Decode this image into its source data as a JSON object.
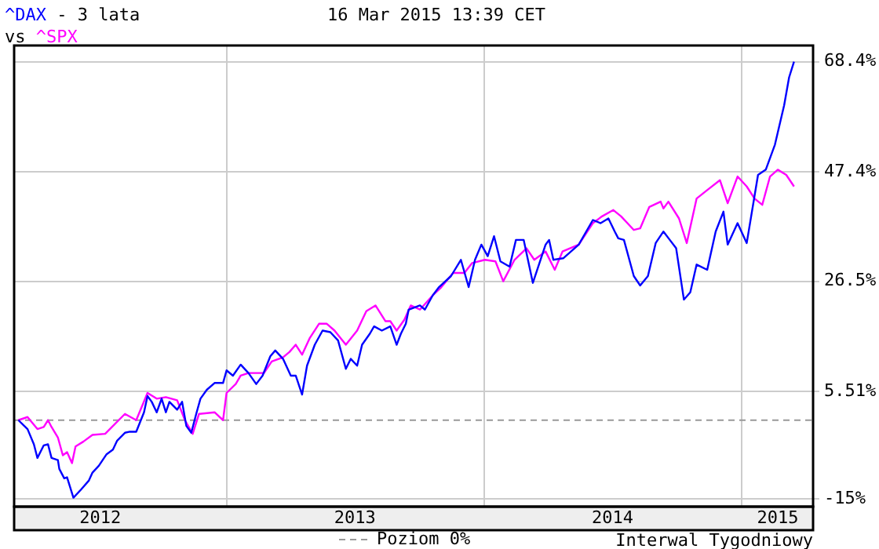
{
  "chart_data": {
    "type": "line",
    "title": "- 3 lata",
    "subtitle": "16 Mar 2015 13:39 CET",
    "annotations": [
      "vs",
      "Interwal Tygodniowy"
    ],
    "legend": "bottom",
    "grid": true,
    "marker": "none",
    "line_style": "solid",
    "xlim": [
      "2012-03-06",
      "2015-04-12"
    ],
    "xticks": [
      {
        "value": "2012-07-06",
        "label": "2012"
      },
      {
        "value": "2013-01-01",
        "label": null
      },
      {
        "value": "2013-07-02",
        "label": "2013"
      },
      {
        "value": "2014-01-01",
        "label": null
      },
      {
        "value": "2014-07-02",
        "label": "2014"
      },
      {
        "value": "2015-01-01",
        "label": null
      },
      {
        "value": "2015-02-21",
        "label": "2015"
      }
    ],
    "ylim": [
      -16.5,
      71.5
    ],
    "yticks": [
      {
        "value": -15,
        "label": "-15%"
      },
      {
        "value": 5.51,
        "label": "5.51%"
      },
      {
        "value": 26.5,
        "label": "26.5%"
      },
      {
        "value": 47.4,
        "label": "47.4%"
      },
      {
        "value": 68.4,
        "label": "68.4%"
      }
    ],
    "ref_lines": [
      {
        "axis": "y",
        "value": 0,
        "label": "Poziom 0%",
        "color": "#999999",
        "line_style": "dashed"
      }
    ],
    "series": [
      {
        "name": "^DAX",
        "color": "#0000ff",
        "x": [
          "2012-03-12",
          "2012-03-19",
          "2012-03-25",
          "2012-04-03",
          "2012-04-08",
          "2012-04-17",
          "2012-04-23",
          "2012-04-28",
          "2012-05-07",
          "2012-05-09",
          "2012-05-16",
          "2012-05-20",
          "2012-05-29",
          "2012-06-09",
          "2012-06-20",
          "2012-06-25",
          "2012-07-04",
          "2012-07-15",
          "2012-07-24",
          "2012-07-30",
          "2012-08-10",
          "2012-08-17",
          "2012-08-26",
          "2012-09-06",
          "2012-09-11",
          "2012-09-17",
          "2012-09-24",
          "2012-10-01",
          "2012-10-07",
          "2012-10-12",
          "2012-10-23",
          "2012-10-30",
          "2012-11-05",
          "2012-11-12",
          "2012-11-19",
          "2012-11-25",
          "2012-12-04",
          "2012-12-15",
          "2012-12-27",
          "2013-01-01",
          "2013-01-10",
          "2013-01-21",
          "2013-02-01",
          "2013-02-12",
          "2013-02-21",
          "2013-03-04",
          "2013-03-11",
          "2013-03-22",
          "2013-04-02",
          "2013-04-09",
          "2013-04-18",
          "2013-04-25",
          "2013-05-06",
          "2013-05-17",
          "2013-05-28",
          "2013-06-08",
          "2013-06-19",
          "2013-06-26",
          "2013-07-05",
          "2013-07-12",
          "2013-07-23",
          "2013-07-29",
          "2013-08-09",
          "2013-08-21",
          "2013-08-30",
          "2013-09-05",
          "2013-09-12",
          "2013-09-16",
          "2013-10-02",
          "2013-10-09",
          "2013-10-20",
          "2013-10-29",
          "2013-11-15",
          "2013-11-29",
          "2013-12-10",
          "2013-12-19",
          "2013-12-28",
          "2014-01-06",
          "2014-01-15",
          "2014-01-24",
          "2014-02-06",
          "2014-02-15",
          "2014-02-26",
          "2014-03-11",
          "2014-03-29",
          "2014-04-03",
          "2014-04-09",
          "2014-04-23",
          "2014-05-15",
          "2014-06-04",
          "2014-06-15",
          "2014-06-26",
          "2014-07-05",
          "2014-07-10",
          "2014-07-18",
          "2014-08-01",
          "2014-08-10",
          "2014-08-21",
          "2014-09-01",
          "2014-09-12",
          "2014-09-21",
          "2014-09-30",
          "2014-10-11",
          "2014-10-20",
          "2014-10-29",
          "2014-11-13",
          "2014-11-25",
          "2014-12-06",
          "2014-12-12",
          "2014-12-26",
          "2015-01-08",
          "2015-01-24",
          "2015-02-04",
          "2015-02-17",
          "2015-03-02",
          "2015-03-09",
          "2015-03-16"
        ],
        "values": [
          0,
          -0.9,
          -1.7,
          -4.6,
          -7.2,
          -4.8,
          -4.6,
          -7.2,
          -7.6,
          -9.3,
          -11.1,
          -10.9,
          -14.8,
          -13.2,
          -11.5,
          -10,
          -8.7,
          -6.5,
          -5.6,
          -3.9,
          -2.4,
          -2.2,
          -2.2,
          1.5,
          4.6,
          3.5,
          1.5,
          4.1,
          1.5,
          3.5,
          2,
          3.5,
          -1.1,
          -2.4,
          1.2,
          4.1,
          5.8,
          7.1,
          7.1,
          9.5,
          8.5,
          10.6,
          9,
          6.9,
          8.5,
          12.2,
          13.3,
          11.7,
          8.5,
          8.5,
          4.9,
          10.4,
          14.4,
          17.1,
          16.8,
          15.2,
          9.8,
          11.7,
          10.4,
          14.4,
          16.5,
          17.9,
          17.1,
          17.9,
          14.4,
          16.5,
          18.4,
          21.1,
          21.9,
          21.1,
          23.8,
          25.4,
          27.5,
          30.6,
          25.4,
          30.6,
          33.5,
          31.3,
          35.1,
          30.3,
          29.3,
          34.4,
          34.4,
          26.2,
          33.5,
          34.4,
          30.6,
          30.9,
          33.5,
          38.2,
          37.6,
          38.5,
          36,
          34.7,
          34.4,
          27.5,
          25.7,
          27.5,
          33.8,
          36,
          34.4,
          32.8,
          23,
          24.4,
          29.7,
          28.7,
          36,
          39.8,
          33.5,
          37.6,
          33.8,
          46.8,
          47.8,
          52.6,
          60.1,
          65.4,
          68.4
        ]
      },
      {
        "name": "^SPX",
        "color": "#ff00ff",
        "x": [
          "2012-03-12",
          "2012-03-25",
          "2012-04-08",
          "2012-04-17",
          "2012-04-23",
          "2012-04-28",
          "2012-05-07",
          "2012-05-14",
          "2012-05-20",
          "2012-05-27",
          "2012-06-01",
          "2012-06-12",
          "2012-06-25",
          "2012-07-13",
          "2012-07-24",
          "2012-08-10",
          "2012-08-26",
          "2012-09-11",
          "2012-09-24",
          "2012-10-07",
          "2012-10-23",
          "2012-11-03",
          "2012-11-14",
          "2012-11-23",
          "2012-12-15",
          "2012-12-27",
          "2013-01-01",
          "2013-01-14",
          "2013-01-21",
          "2013-02-01",
          "2013-02-23",
          "2013-03-06",
          "2013-03-22",
          "2013-03-31",
          "2013-04-09",
          "2013-04-18",
          "2013-04-29",
          "2013-05-12",
          "2013-05-23",
          "2013-06-03",
          "2013-06-19",
          "2013-07-05",
          "2013-07-18",
          "2013-07-31",
          "2013-08-14",
          "2013-08-21",
          "2013-08-30",
          "2013-09-10",
          "2013-09-19",
          "2013-10-02",
          "2013-10-20",
          "2013-10-31",
          "2013-11-18",
          "2013-12-04",
          "2013-12-15",
          "2014-01-02",
          "2014-01-17",
          "2014-01-28",
          "2014-02-13",
          "2014-03-02",
          "2014-03-13",
          "2014-03-29",
          "2014-04-11",
          "2014-04-22",
          "2014-05-15",
          "2014-06-04",
          "2014-06-17",
          "2014-07-03",
          "2014-07-14",
          "2014-08-01",
          "2014-08-10",
          "2014-08-23",
          "2014-09-08",
          "2014-09-12",
          "2014-09-19",
          "2014-10-04",
          "2014-10-15",
          "2014-10-29",
          "2014-11-13",
          "2014-12-01",
          "2014-12-12",
          "2014-12-26",
          "2015-01-08",
          "2015-01-19",
          "2015-01-30",
          "2015-02-10",
          "2015-02-21",
          "2015-03-05",
          "2015-03-16"
        ],
        "values": [
          0,
          0.6,
          -1.7,
          -1.3,
          0,
          -1.3,
          -3.3,
          -6.7,
          -6.1,
          -8.2,
          -5,
          -4.1,
          -2.8,
          -2.6,
          -1.1,
          1.2,
          0,
          5.2,
          4.1,
          4.4,
          3.8,
          0,
          -2.6,
          1.2,
          1.5,
          0,
          5.2,
          6.9,
          8.5,
          9,
          9,
          11.2,
          12,
          13,
          14.4,
          12.5,
          15.7,
          18.4,
          18.4,
          17.1,
          14.4,
          17.1,
          20.8,
          21.9,
          18.9,
          18.9,
          17.1,
          19.2,
          21.9,
          21.1,
          23.8,
          25.2,
          28.1,
          28.1,
          30,
          30.6,
          30.3,
          26.5,
          30.6,
          32.8,
          30.6,
          32.2,
          28.7,
          32.2,
          33.5,
          37.6,
          38.9,
          40.1,
          38.9,
          36.3,
          36.6,
          40.7,
          41.7,
          40.4,
          41.7,
          38.5,
          33.8,
          42.3,
          43.9,
          45.8,
          41.4,
          46.5,
          44.6,
          42.3,
          41.1,
          46.5,
          47.8,
          46.8,
          44.6
        ]
      }
    ]
  }
}
